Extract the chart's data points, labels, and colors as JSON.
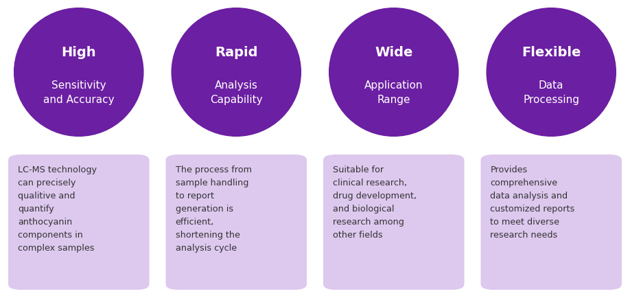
{
  "background_color": "#ffffff",
  "circle_color": "#6b1fa2",
  "box_color": "#ddc8ee",
  "circle_text_color": "#ffffff",
  "body_text_color": "#333333",
  "columns": [
    {
      "bold_title": "High",
      "subtitle": "Sensitivity\nand Accuracy",
      "body": "LC-MS technology\ncan precisely\nqualitive and\nquantify\nanthocyanin\ncomponents in\ncomplex samples"
    },
    {
      "bold_title": "Rapid",
      "subtitle": "Analysis\nCapability",
      "body": "The process from\nsample handling\nto report\ngeneration is\nefficient,\nshortening the\nanalysis cycle"
    },
    {
      "bold_title": "Wide",
      "subtitle": "Application\nRange",
      "body": "Suitable for\nclinical research,\ndrug development,\nand biological\nresearch among\nother fields"
    },
    {
      "bold_title": "Flexible",
      "subtitle": "Data\nProcessing",
      "body": "Provides\ncomprehensive\ndata analysis and\ncustomized reports\nto meet diverse\nresearch needs"
    }
  ],
  "figsize": [
    9.18,
    4.34
  ],
  "dpi": 100
}
